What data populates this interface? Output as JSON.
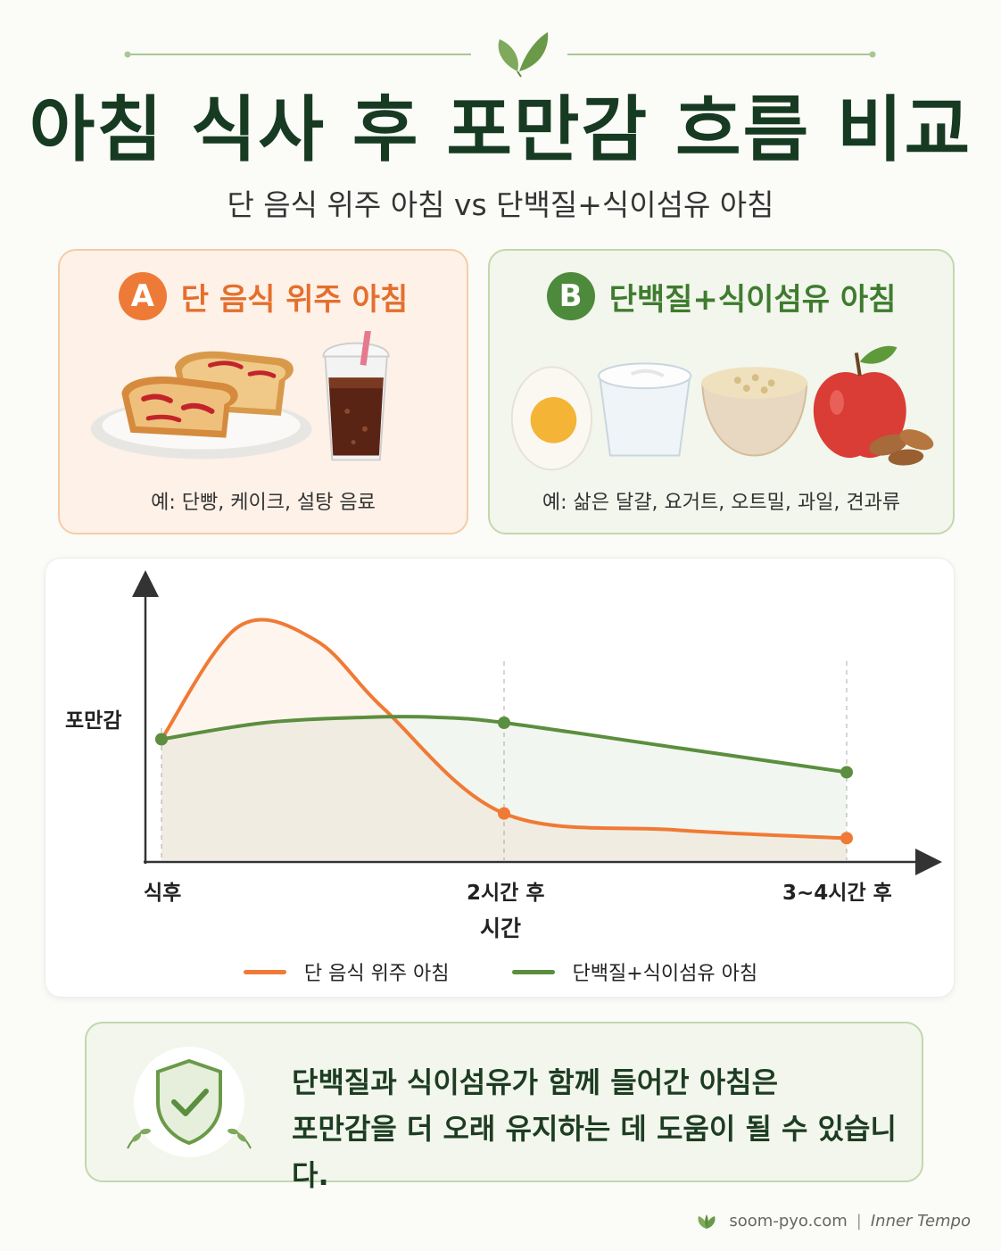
{
  "header": {
    "title": "아침 식사 후 포만감 흐름 비교",
    "subtitle": "단 음식 위주 아침 vs 단백질+식이섬유 아침"
  },
  "cards": [
    {
      "badge": "A",
      "title": "단 음식 위주 아침",
      "examples": "예: 단빵, 케이크, 설탕 음료",
      "accent": "#ee7a38"
    },
    {
      "badge": "B",
      "title": "단백질+식이섬유 아침",
      "examples": "예: 삶은 달걀, 요거트, 오트밀, 과일, 견과류",
      "accent": "#4d8a3b"
    }
  ],
  "chart_data": {
    "type": "line",
    "ylabel": "포만감",
    "xlabel": "시간",
    "x_ticks": [
      {
        "x": 0,
        "label": "식후"
      },
      {
        "x": 2,
        "label": "2시간 후"
      },
      {
        "x": 4,
        "label": "3~4시간 후"
      }
    ],
    "xlim": [
      0,
      4.5
    ],
    "ylim": [
      0,
      10
    ],
    "series": [
      {
        "name": "단 음식 위주 아침",
        "color": "#f07a35",
        "points": [
          [
            0,
            4.4
          ],
          [
            0.45,
            8.5
          ],
          [
            0.9,
            8.0
          ],
          [
            1.3,
            5.5
          ],
          [
            2,
            1.7
          ],
          [
            3,
            1.1
          ],
          [
            4,
            0.8
          ]
        ],
        "markers": [
          0,
          2,
          4
        ]
      },
      {
        "name": "단백질+식이섬유 아침",
        "color": "#5b8e3e",
        "points": [
          [
            0,
            4.4
          ],
          [
            0.6,
            5.0
          ],
          [
            1.2,
            5.2
          ],
          [
            1.6,
            5.2
          ],
          [
            2,
            5.0
          ],
          [
            3,
            4.1
          ],
          [
            4,
            3.2
          ]
        ],
        "markers": [
          0,
          2,
          4
        ]
      }
    ],
    "legend": "bottom",
    "grid": false
  },
  "note": {
    "line1": "단백질과 식이섬유가 함께 들어간 아침은",
    "line2": "포만감을 더 오래 유지하는 데 도움이 될 수 있습니다."
  },
  "footer": {
    "site": "soom-pyo.com",
    "separator": "|",
    "brand": "Inner Tempo"
  }
}
